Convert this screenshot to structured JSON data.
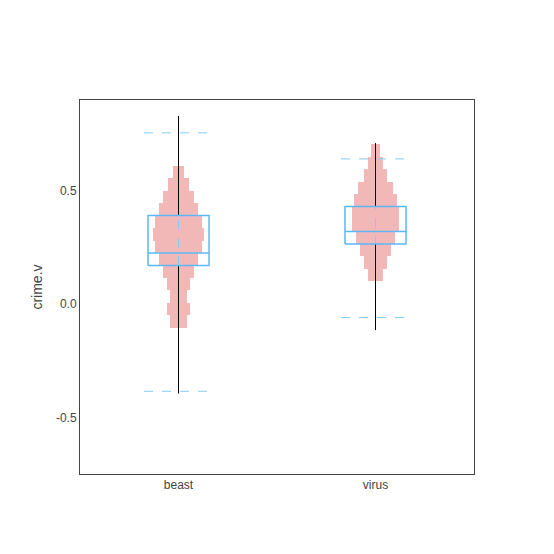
{
  "chart_data": {
    "type": "box",
    "ylabel": "crime.v",
    "categories": [
      "beast",
      "virus"
    ],
    "ylim": [
      -0.75,
      0.9
    ],
    "yticks": [
      -0.5,
      {
        "value": 0.0,
        "label": "0.0"
      },
      0.5
    ],
    "grid": false,
    "series": [
      {
        "type": "line",
        "color": "#82ccf5",
        "line_style": "dashed",
        "dashed_top": [
          0.755,
          0.64
        ],
        "dashed_bot": [
          -0.385,
          -0.06
        ]
      },
      {
        "type": "bar",
        "color": "#f2b8b8",
        "bottoms": [
          [
            0.555,
            0.5,
            0.445,
            0.39,
            0.335,
            0.28,
            0.225,
            0.17,
            0.115,
            0.06,
            0.005,
            -0.05,
            -0.105
          ],
          [
            0.65,
            0.595,
            0.54,
            0.485,
            0.43,
            0.375,
            0.32,
            0.265,
            0.21,
            0.155,
            0.1
          ]
        ],
        "heights": [
          [
            0.055,
            0.055,
            0.055,
            0.055,
            0.055,
            0.055,
            0.055,
            0.055,
            0.055,
            0.055,
            0.055,
            0.055,
            0.055
          ],
          [
            0.055,
            0.055,
            0.055,
            0.055,
            0.055,
            0.055,
            0.055,
            0.055,
            0.055,
            0.055,
            0.055
          ]
        ],
        "half_widths": [
          [
            0.03,
            0.055,
            0.08,
            0.1,
            0.118,
            0.13,
            0.118,
            0.1,
            0.08,
            0.06,
            0.045,
            0.06,
            0.045
          ],
          [
            0.022,
            0.04,
            0.06,
            0.09,
            0.11,
            0.118,
            0.118,
            0.1,
            0.08,
            0.06,
            0.04
          ]
        ]
      },
      {
        "type": "box",
        "color": "#5bb8f5",
        "q1": [
          0.17,
          0.265
        ],
        "q3": [
          0.39,
          0.43
        ],
        "median": [
          0.225,
          0.32
        ],
        "whisker_color": "black",
        "whisker_top": [
          0.83,
          0.71
        ],
        "whisker_bot": [
          -0.395,
          -0.115
        ]
      }
    ]
  }
}
